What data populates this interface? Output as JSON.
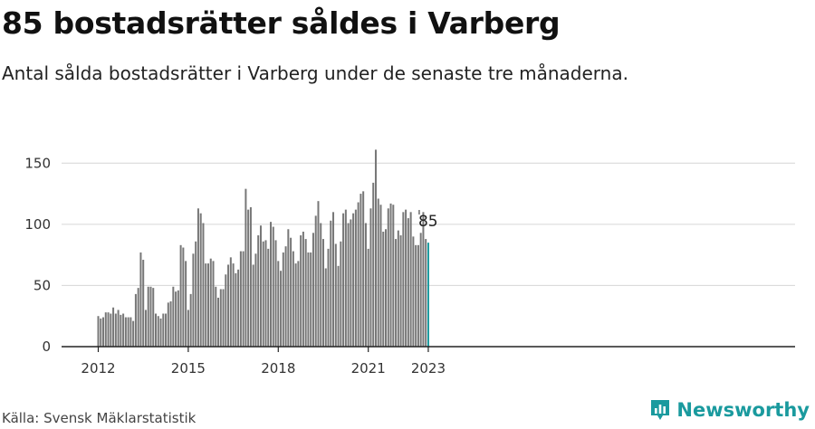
{
  "header": {
    "title": "85 bostadsrätter såldes i Varberg",
    "subtitle": "Antal sålda bostadsrätter i Varberg under de senaste tre månaderna."
  },
  "footer": {
    "source": "Källa: Svensk Mäklarstatistik",
    "brand": "Newsworthy",
    "brand_icon": "bar-chart-logo-icon",
    "brand_color": "#1a9a9e"
  },
  "chart_data": {
    "type": "bar",
    "title": "",
    "xlabel": "",
    "ylabel": "",
    "ylim": [
      0,
      165
    ],
    "y_ticks": [
      0,
      50,
      100,
      150
    ],
    "x_ticks": [
      "2012",
      "2015",
      "2018",
      "2021",
      "2023"
    ],
    "grid": true,
    "bar_color": "#777777",
    "highlight_color": "#1a9a9e",
    "start": "2012-01",
    "end": "2023-01",
    "series": [
      {
        "values": [
          25,
          23,
          24,
          28,
          28,
          27,
          32,
          27,
          30,
          26,
          27,
          24,
          24,
          24,
          21,
          43,
          48,
          77,
          71,
          30,
          49,
          49,
          48,
          27,
          25,
          23,
          27,
          27,
          36,
          37,
          49,
          45,
          46,
          83,
          81,
          70,
          30,
          43,
          76,
          86,
          113,
          109,
          101,
          68,
          68,
          72,
          70,
          49,
          40,
          47,
          47,
          59,
          67,
          73,
          68,
          60,
          63,
          78,
          78,
          129,
          112,
          114,
          67,
          76,
          91,
          99,
          86,
          87,
          80,
          102,
          98,
          87,
          70,
          62,
          77,
          82,
          96,
          89,
          78,
          68,
          70,
          91,
          94,
          88,
          77,
          77,
          93,
          107,
          119,
          101,
          88,
          64,
          80,
          103,
          110,
          84,
          66,
          86,
          109,
          112,
          101,
          104,
          109,
          112,
          118,
          125,
          127,
          101,
          80,
          113,
          134,
          161,
          121,
          116,
          94,
          96,
          113,
          117,
          116,
          88,
          95,
          91,
          110,
          112,
          105,
          110,
          90,
          83,
          83,
          93,
          110,
          88,
          85
        ]
      }
    ],
    "annotation": {
      "label": "85"
    }
  }
}
